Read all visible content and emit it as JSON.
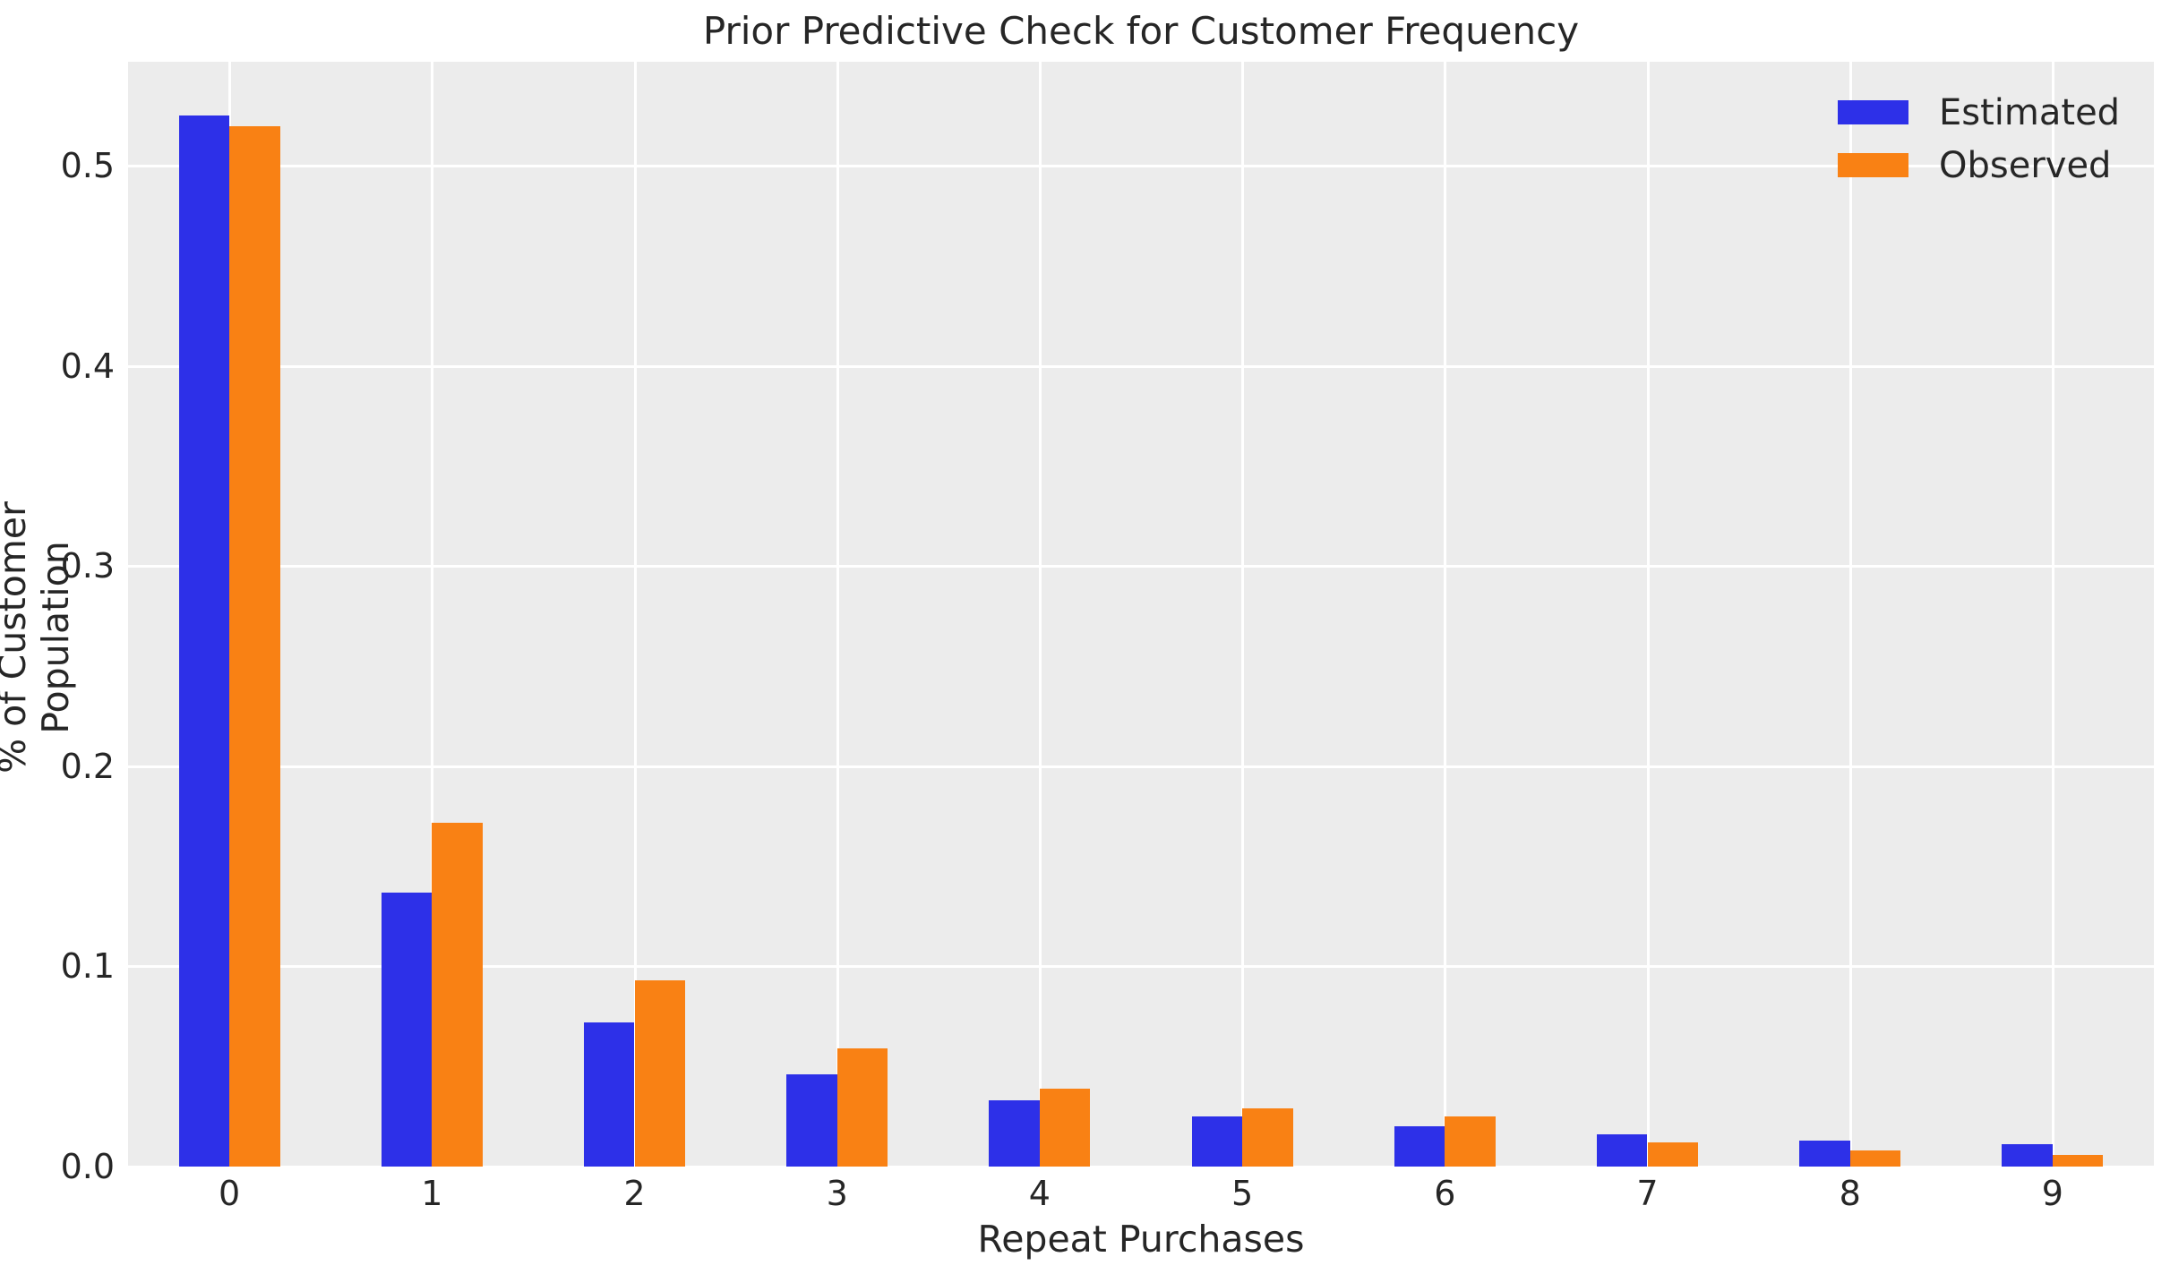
{
  "figure": {
    "title": "Prior Predictive Check for Customer Frequency"
  },
  "chart_data": {
    "type": "bar",
    "title": "Prior Predictive Check for Customer Frequency",
    "xlabel": "Repeat Purchases",
    "ylabel": "% of Customer Population",
    "categories": [
      "0",
      "1",
      "2",
      "3",
      "4",
      "5",
      "6",
      "7",
      "8",
      "9"
    ],
    "series": [
      {
        "name": "Estimated",
        "color": "#2d30e8",
        "values": [
          0.525,
          0.137,
          0.072,
          0.046,
          0.033,
          0.025,
          0.02,
          0.016,
          0.013,
          0.011
        ]
      },
      {
        "name": "Observed",
        "color": "#f98114",
        "values": [
          0.52,
          0.172,
          0.093,
          0.059,
          0.039,
          0.029,
          0.025,
          0.012,
          0.008,
          0.006
        ]
      }
    ],
    "yticks": [
      0.0,
      0.1,
      0.2,
      0.3,
      0.4,
      0.5
    ],
    "ytick_labels": [
      "0.0",
      "0.1",
      "0.2",
      "0.3",
      "0.4",
      "0.5"
    ],
    "ylim": [
      0,
      0.552
    ],
    "grid": true,
    "legend_position": "upper right",
    "plot_background": "#ececec",
    "grid_color": "#ffffff",
    "text_color": "#262626"
  }
}
